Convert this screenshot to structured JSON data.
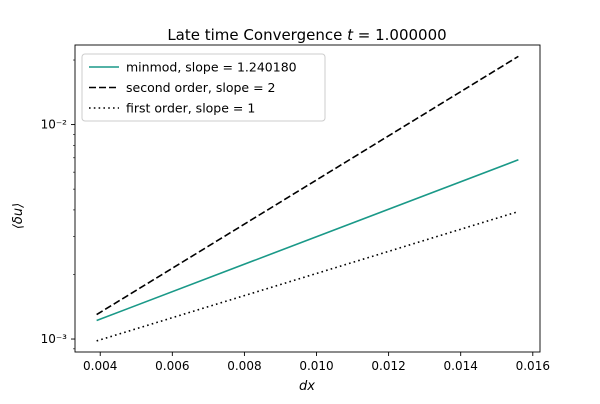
{
  "chart_data": {
    "type": "line",
    "title": "Late time Convergence $t = 1.000000$",
    "title_parts": {
      "prefix": "Late time Convergence ",
      "var": "t",
      "suffix": " = 1.000000"
    },
    "xlabel": "dx",
    "ylabel": "⟨δu⟩",
    "xscale": "linear",
    "yscale": "log",
    "xlim": [
      0.0033,
      0.0162
    ],
    "ylim": [
      0.00087,
      0.0235
    ],
    "grid": false,
    "legend_position": "top-left",
    "x_ticks": [
      0.004,
      0.006,
      0.008,
      0.01,
      0.012,
      0.014,
      0.016
    ],
    "x_tick_labels": [
      "0.004",
      "0.006",
      "0.008",
      "0.010",
      "0.012",
      "0.014",
      "0.016"
    ],
    "y_ticks": [
      0.001,
      0.01
    ],
    "y_tick_labels": [
      "10⁻³",
      "10⁻²"
    ],
    "series": [
      {
        "name": "minmod, slope =  1.240180",
        "style": "solid",
        "color": "#1a9988",
        "x": [
          0.0039,
          0.0156
        ],
        "y": [
          0.00122,
          0.00685
        ]
      },
      {
        "name": "second order, slope = 2",
        "style": "dashed",
        "color": "#000000",
        "x": [
          0.0039,
          0.0156
        ],
        "y": [
          0.0013,
          0.0208
        ]
      },
      {
        "name": "first order, slope = 1",
        "style": "dotted",
        "color": "#000000",
        "x": [
          0.0039,
          0.0156
        ],
        "y": [
          0.00098,
          0.00393
        ]
      }
    ]
  }
}
